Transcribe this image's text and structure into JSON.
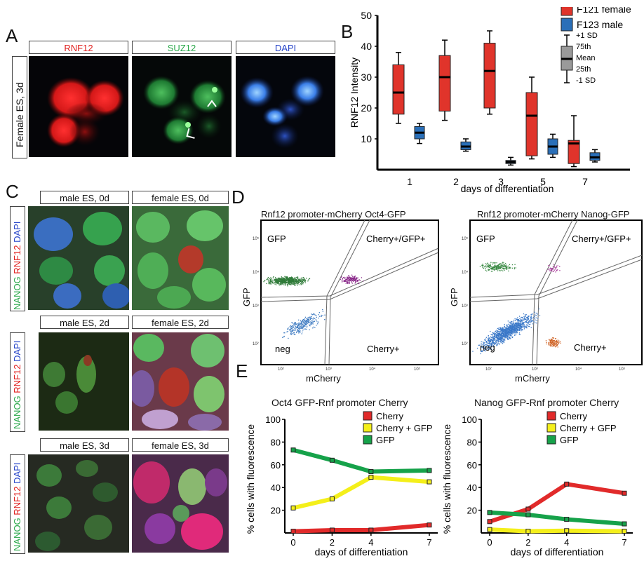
{
  "panel_labels": {
    "a": "A",
    "b": "B",
    "c": "C",
    "d": "D",
    "e": "E"
  },
  "panelA": {
    "row_label": "Female ES, 3d",
    "channels": [
      {
        "name": "RNF12",
        "color": "#e0201e"
      },
      {
        "name": "SUZ12",
        "color": "#2aa84a"
      },
      {
        "name": "DAPI",
        "color": "#2644c8"
      }
    ]
  },
  "panelC": {
    "row_label_parts": [
      {
        "text": "NANOG",
        "color": "#2aa84a"
      },
      {
        "text": " RNF12",
        "color": "#e0201e"
      },
      {
        "text": " DAPI",
        "color": "#2644c8"
      }
    ],
    "rows": [
      {
        "left": "male ES, 0d",
        "right": "female ES, 0d"
      },
      {
        "left": "male ES, 2d",
        "right": "female ES, 2d"
      },
      {
        "left": "male ES, 3d",
        "right": "female ES, 3d"
      }
    ]
  },
  "panelD": {
    "plots": [
      {
        "title": "Rnf12 promoter-mCherry Oct4-GFP",
        "xlabel": "mCherry",
        "ylabel": "GFP",
        "gates": {
          "tl": "GFP",
          "tr": "Cherry+/GFP+",
          "bl": "neg",
          "br": "Cherry+"
        }
      },
      {
        "title": "Rnf12 promoter-mCherry Nanog-GFP",
        "xlabel": "mCherry",
        "ylabel": "GFP",
        "gates": {
          "tl": "GFP",
          "tr": "Cherry+/GFP+",
          "bl": "neg",
          "br": "Cherry+"
        }
      }
    ],
    "xticks": [
      "10²",
      "10³",
      "10⁴",
      "10⁵"
    ],
    "yticks": [
      "10²",
      "10³",
      "10⁴",
      "10⁵"
    ]
  },
  "legend_keys": {
    "mean": "Mean"
  },
  "chart_data": [
    {
      "type": "box",
      "xlabel": "days of differentiation",
      "ylabel": "RNF12  Intensity",
      "ylim": [
        0,
        50
      ],
      "yticks": [
        10,
        20,
        30,
        40,
        50
      ],
      "categories": [
        "1",
        "2",
        "3",
        "5",
        "7"
      ],
      "legend": {
        "series": [
          {
            "name": "F121 female",
            "color": "#e0342b"
          },
          {
            "name": "F123 male",
            "color": "#2a6fb8"
          }
        ],
        "key": [
          "+1 SD",
          "75th",
          "Mean",
          "25th",
          "-1 SD"
        ]
      },
      "series": [
        {
          "name": "F121 female",
          "color": "#e0342b",
          "boxes": [
            {
              "day": "1",
              "sd_lo": 15,
              "q1": 18,
              "mean": 25,
              "q3": 34,
              "sd_hi": 38
            },
            {
              "day": "2",
              "sd_lo": 16,
              "q1": 19,
              "mean": 30,
              "q3": 37,
              "sd_hi": 42
            },
            {
              "day": "3",
              "sd_lo": 18,
              "q1": 20,
              "mean": 32,
              "q3": 41,
              "sd_hi": 45
            },
            {
              "day": "5",
              "sd_lo": 3.5,
              "q1": 4.5,
              "mean": 17.5,
              "q3": 25,
              "sd_hi": 30
            },
            {
              "day": "7",
              "sd_lo": 1,
              "q1": 2,
              "mean": 8.5,
              "q3": 9.5,
              "sd_hi": 17.5
            }
          ]
        },
        {
          "name": "F123 male",
          "color": "#2a6fb8",
          "boxes": [
            {
              "day": "1",
              "sd_lo": 8.5,
              "q1": 10,
              "mean": 12,
              "q3": 14,
              "sd_hi": 15
            },
            {
              "day": "2",
              "sd_lo": 6,
              "q1": 6.5,
              "mean": 7.5,
              "q3": 9,
              "sd_hi": 10
            },
            {
              "day": "3",
              "sd_lo": 1.5,
              "q1": 2,
              "mean": 2.5,
              "q3": 3,
              "sd_hi": 4
            },
            {
              "day": "5",
              "sd_lo": 4,
              "q1": 5,
              "mean": 7.5,
              "q3": 10,
              "sd_hi": 11.5
            },
            {
              "day": "7",
              "sd_lo": 2.5,
              "q1": 3,
              "mean": 4,
              "q3": 5.5,
              "sd_hi": 6.5
            }
          ]
        }
      ]
    },
    {
      "type": "line",
      "title": "Oct4 GFP-Rnf promoter Cherry",
      "xlabel": "days of differentiation",
      "ylabel": "% cells with fluorescence",
      "x": [
        0,
        2,
        4,
        7
      ],
      "xticks": [
        "0",
        "2",
        "4",
        "7"
      ],
      "ylim": [
        0,
        100
      ],
      "yticks": [
        20,
        40,
        60,
        80,
        100
      ],
      "series": [
        {
          "name": "Cherry",
          "color": "#e12a2a",
          "values": [
            1.5,
            2.5,
            2.5,
            7
          ]
        },
        {
          "name": "Cherry + GFP",
          "color": "#f4ef1a",
          "values": [
            22,
            30,
            49,
            45
          ]
        },
        {
          "name": "GFP",
          "color": "#16a24a",
          "values": [
            73,
            64,
            54,
            55
          ]
        }
      ]
    },
    {
      "type": "line",
      "title": "Nanog GFP-Rnf promoter Cherry",
      "xlabel": "days of differentiation",
      "ylabel": "% cells with fluorescence",
      "x": [
        0,
        2,
        4,
        7
      ],
      "xticks": [
        "0",
        "2",
        "4",
        "7"
      ],
      "ylim": [
        0,
        100
      ],
      "yticks": [
        20,
        40,
        60,
        80,
        100
      ],
      "series": [
        {
          "name": "Cherry",
          "color": "#e12a2a",
          "values": [
            10,
            21,
            43,
            35
          ]
        },
        {
          "name": "Cherry + GFP",
          "color": "#f4ef1a",
          "values": [
            3,
            1.5,
            2,
            1.5
          ]
        },
        {
          "name": "GFP",
          "color": "#16a24a",
          "values": [
            18,
            16,
            12,
            8
          ]
        }
      ]
    }
  ]
}
